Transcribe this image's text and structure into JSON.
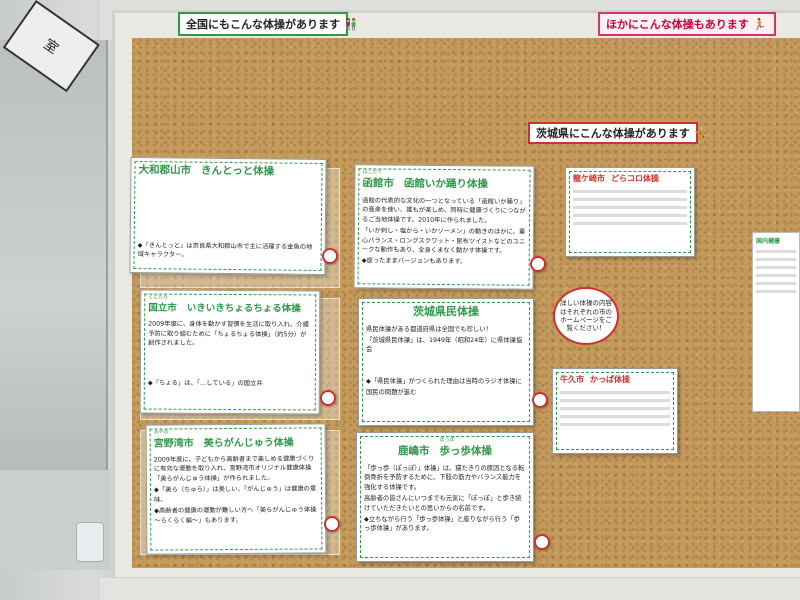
{
  "room_sign": "室",
  "headers": {
    "national": "全国にもこんな体操があります",
    "others": "ほかにこんな体操もあります",
    "ibaraki": "茨城県にこんな体操があります"
  },
  "cards": {
    "yamato": {
      "city_ruby": "",
      "city": "大和郡山市",
      "name": "きんとっと体操",
      "lines": [
        "◆「きんとっと」は奈良県大和郡山市で主に活躍する金魚の地域キャラクター。"
      ]
    },
    "hakodate": {
      "city_ruby": "はこだて",
      "city": "函館市",
      "name": "函館いか踊り体操",
      "lines": [
        "函館の代表的な文化の一つとなっている「函館いか踊り」の音楽を使い、誰もが楽しめ、同時に健康づくりにつながるご当地体操です。2010年に作られました。",
        "「いか刺し・塩から・いかソーメン」の動きのほかに、重心バランス・ロングスクワット・昆布ツイストなどのユニークな動作もあり、全身くまなく動かす体操です。",
        "◆座ったままバージョンもあります。"
      ]
    },
    "ryugasaki": {
      "city": "龍ケ崎市",
      "name": "どらコロ体操"
    },
    "kunitachi": {
      "city_ruby": "くにたち",
      "city": "国立市",
      "name": "いきいきちょるちょる体操",
      "lines": [
        "2009年度に、身体を動かす習慣を生活に取り入れ、介護予防に取り組むために「ちょるちょる体操」（約5分）が創作されました。",
        "◆「ちょる」は、「…している」の国立弁"
      ]
    },
    "ibaraki": {
      "title": "茨城県民体操",
      "lines": [
        "県民体操がある都道府県は全国でも珍しい！",
        "「茨城県民体操」は、1949年（昭和24年）に県体操協会",
        "◆「県民体操」がつくられた理由は当時のラジオ体操に",
        "国民の問題が進む"
      ]
    },
    "miyano": {
      "city_ruby": "みやの",
      "city": "宮野湾市",
      "name": "美らがんじゅう体操",
      "lines": [
        "2009年度に、子どもから高齢者まで楽しめる健康づくりに有効な運動を取り入れ、宮野湾市オリジナル健康体操「美らがんじゅう体操」が作られました。",
        "◆「美ら（ちゅら）」は美しい、「がんじゅう」は健康の意味。",
        "◆高齢者の健康の運動が難しい方へ「美らがんじゅう体操～らくらく編～」もあります。"
      ]
    },
    "kashima": {
      "city": "鹿嶋市",
      "name_ruby": "ぽっぽ",
      "name": "歩っ歩体操",
      "lines": [
        "「歩っ歩（ぽっぽ）」体操」は、寝たきりの原因となる転倒骨折を予防するために、下肢の筋力やバランス能力を強化する体操です。",
        "高齢者の皆さんにいつまでも元気に「ぽっぽ」と歩き続けていただきたいとの思いからの名前です。",
        "◆立ちながら行う「歩っ歩体操」と座りながら行う「歩っ歩体操」があります。"
      ]
    },
    "ushiku": {
      "city": "牛久市",
      "name": "かっぱ体操"
    }
  },
  "bubble_text": "詳しい体操の内容はそれぞれの市のホームページをご覧ください！",
  "side_sheet_title": "国内健康"
}
